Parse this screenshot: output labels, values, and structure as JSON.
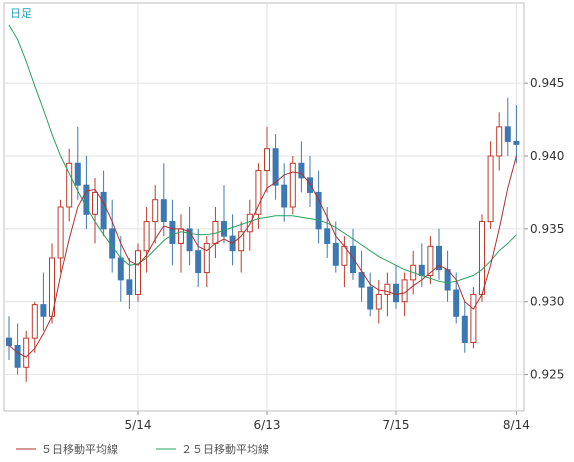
{
  "chart_data": {
    "type": "line",
    "period_label": "日足",
    "x_tick_labels": [
      "5/14",
      "6/13",
      "7/15",
      "8/14"
    ],
    "y_tick_labels": [
      "0.925",
      "0.930",
      "0.935",
      "0.940",
      "0.945"
    ],
    "ylim": [
      0.9225,
      0.9505
    ],
    "grid": true,
    "legend_placement": "bottom-left",
    "colors": {
      "up": "#c0392b",
      "down": "#3d78b0",
      "ma5": "#b03030",
      "ma25": "#2aa060"
    },
    "series": [
      {
        "name": "５日移動平均線",
        "key": "ma5"
      },
      {
        "name": "２５日移動平均線",
        "key": "ma25"
      }
    ],
    "candles": [
      [
        0.9275,
        0.929,
        0.926,
        0.927
      ],
      [
        0.927,
        0.9285,
        0.925,
        0.9255
      ],
      [
        0.9255,
        0.928,
        0.9245,
        0.9275
      ],
      [
        0.9275,
        0.93,
        0.9265,
        0.9298
      ],
      [
        0.9298,
        0.932,
        0.928,
        0.929
      ],
      [
        0.929,
        0.934,
        0.9285,
        0.933
      ],
      [
        0.933,
        0.937,
        0.932,
        0.9365
      ],
      [
        0.9365,
        0.9405,
        0.9355,
        0.9395
      ],
      [
        0.9395,
        0.942,
        0.937,
        0.938
      ],
      [
        0.938,
        0.94,
        0.935,
        0.936
      ],
      [
        0.936,
        0.9385,
        0.934,
        0.9375
      ],
      [
        0.9375,
        0.939,
        0.9345,
        0.935
      ],
      [
        0.935,
        0.937,
        0.932,
        0.933
      ],
      [
        0.933,
        0.9345,
        0.93,
        0.9315
      ],
      [
        0.9315,
        0.933,
        0.9295,
        0.9305
      ],
      [
        0.9305,
        0.934,
        0.93,
        0.9335
      ],
      [
        0.9335,
        0.9365,
        0.932,
        0.9355
      ],
      [
        0.9355,
        0.938,
        0.934,
        0.937
      ],
      [
        0.937,
        0.9395,
        0.9345,
        0.9355
      ],
      [
        0.9355,
        0.937,
        0.9325,
        0.934
      ],
      [
        0.934,
        0.936,
        0.932,
        0.935
      ],
      [
        0.935,
        0.9365,
        0.9325,
        0.9335
      ],
      [
        0.9335,
        0.935,
        0.931,
        0.932
      ],
      [
        0.932,
        0.9345,
        0.931,
        0.934
      ],
      [
        0.934,
        0.9365,
        0.933,
        0.9355
      ],
      [
        0.9355,
        0.938,
        0.934,
        0.9345
      ],
      [
        0.9345,
        0.936,
        0.9325,
        0.9335
      ],
      [
        0.9335,
        0.9355,
        0.932,
        0.9348
      ],
      [
        0.9348,
        0.937,
        0.9335,
        0.936
      ],
      [
        0.936,
        0.9395,
        0.935,
        0.939
      ],
      [
        0.939,
        0.942,
        0.9375,
        0.9405
      ],
      [
        0.9405,
        0.9415,
        0.937,
        0.938
      ],
      [
        0.938,
        0.9395,
        0.9355,
        0.9365
      ],
      [
        0.9365,
        0.94,
        0.936,
        0.9395
      ],
      [
        0.9395,
        0.941,
        0.9375,
        0.9385
      ],
      [
        0.9385,
        0.94,
        0.9365,
        0.9375
      ],
      [
        0.9375,
        0.939,
        0.934,
        0.935
      ],
      [
        0.935,
        0.9365,
        0.933,
        0.934
      ],
      [
        0.934,
        0.9355,
        0.932,
        0.9325
      ],
      [
        0.9325,
        0.9345,
        0.931,
        0.9338
      ],
      [
        0.9338,
        0.935,
        0.9315,
        0.932
      ],
      [
        0.932,
        0.9335,
        0.93,
        0.931
      ],
      [
        0.931,
        0.932,
        0.929,
        0.9295
      ],
      [
        0.9295,
        0.9315,
        0.9285,
        0.9305
      ],
      [
        0.9305,
        0.932,
        0.929,
        0.9312
      ],
      [
        0.9312,
        0.9325,
        0.9295,
        0.93
      ],
      [
        0.93,
        0.932,
        0.929,
        0.9315
      ],
      [
        0.9315,
        0.9335,
        0.9305,
        0.9325
      ],
      [
        0.9325,
        0.934,
        0.931,
        0.9318
      ],
      [
        0.9318,
        0.9345,
        0.9312,
        0.9338
      ],
      [
        0.9338,
        0.935,
        0.9315,
        0.9322
      ],
      [
        0.9322,
        0.9335,
        0.93,
        0.9308
      ],
      [
        0.9308,
        0.932,
        0.9285,
        0.929
      ],
      [
        0.929,
        0.93,
        0.9265,
        0.9272
      ],
      [
        0.9272,
        0.931,
        0.9268,
        0.9305
      ],
      [
        0.9305,
        0.936,
        0.93,
        0.9355
      ],
      [
        0.9355,
        0.941,
        0.935,
        0.94
      ],
      [
        0.94,
        0.943,
        0.939,
        0.942
      ],
      [
        0.942,
        0.944,
        0.94,
        0.941
      ],
      [
        0.941,
        0.9435,
        0.9395,
        0.9408
      ]
    ],
    "ma5": [
      0.927,
      0.9265,
      0.9262,
      0.9268,
      0.9278,
      0.929,
      0.9318,
      0.9343,
      0.9365,
      0.9376,
      0.9377,
      0.9368,
      0.9355,
      0.934,
      0.9328,
      0.9325,
      0.9332,
      0.9343,
      0.9352,
      0.935,
      0.935,
      0.9348,
      0.9338,
      0.9335,
      0.934,
      0.9343,
      0.934,
      0.9345,
      0.9353,
      0.9366,
      0.9378,
      0.9382,
      0.9387,
      0.9389,
      0.9388,
      0.9381,
      0.937,
      0.9358,
      0.9345,
      0.9338,
      0.933,
      0.9321,
      0.9312,
      0.9308,
      0.9307,
      0.9305,
      0.9306,
      0.9311,
      0.9315,
      0.932,
      0.9325,
      0.9322,
      0.9315,
      0.93,
      0.9295,
      0.9305,
      0.9325,
      0.935,
      0.9378,
      0.94
    ],
    "ma25": [
      0.949,
      0.948,
      0.9465,
      0.9448,
      0.9432,
      0.9415,
      0.94,
      0.9388,
      0.9376,
      0.9365,
      0.9355,
      0.9346,
      0.9338,
      0.933,
      0.9325,
      0.9326,
      0.933,
      0.9336,
      0.9342,
      0.9346,
      0.9348,
      0.9347,
      0.9346,
      0.9346,
      0.9347,
      0.9349,
      0.9351,
      0.9353,
      0.9355,
      0.9357,
      0.9358,
      0.9359,
      0.9359,
      0.9359,
      0.9358,
      0.9357,
      0.9356,
      0.9354,
      0.9351,
      0.9347,
      0.9343,
      0.9339,
      0.9335,
      0.9331,
      0.9328,
      0.9325,
      0.9322,
      0.932,
      0.9318,
      0.9316,
      0.9314,
      0.9313,
      0.9314,
      0.9316,
      0.9318,
      0.9322,
      0.9328,
      0.9335,
      0.934,
      0.9346
    ]
  }
}
